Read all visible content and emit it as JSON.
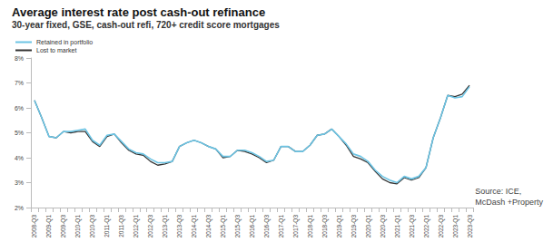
{
  "chart_data": {
    "type": "line",
    "title": "Average interest rate post cash-out refinance",
    "subtitle": "30-year fixed, GSE, cash-out refi, 720+ credit score mortgages",
    "annotations": [
      "Source: ICE,",
      "McDash +Property"
    ],
    "categories": [
      "2008-Q3",
      null,
      "2009-Q1",
      null,
      "2009-Q3",
      null,
      "2010-Q1",
      null,
      "2010-Q3",
      null,
      "2011-Q1",
      null,
      "2011-Q3",
      null,
      "2012-Q1",
      null,
      "2012-Q3",
      null,
      "2013-Q1",
      null,
      "2013-Q3",
      null,
      "2014-Q1",
      null,
      "2014-Q3",
      null,
      "2015-Q1",
      null,
      "2015-Q3",
      null,
      "2016-Q1",
      null,
      "2016-Q3",
      null,
      "2017-Q1",
      null,
      "2017-Q3",
      null,
      "2018-Q1",
      null,
      "2018-Q3",
      null,
      "2019-Q1",
      null,
      "2019-Q3",
      null,
      "2020-Q1",
      null,
      "2020-Q3",
      null,
      "2021-Q1",
      null,
      "2021-Q3",
      null,
      "2022-Q1",
      null,
      "2022-Q3",
      null,
      "2023-Q1",
      null,
      "2023-Q3"
    ],
    "series": [
      {
        "name": "Retained in portfolio",
        "color": "#6cc4e4",
        "values": [
          6.3,
          5.6,
          4.85,
          4.8,
          5.05,
          5.05,
          5.1,
          5.15,
          4.7,
          4.5,
          4.9,
          4.95,
          4.65,
          4.35,
          4.2,
          4.15,
          3.95,
          3.8,
          3.8,
          3.85,
          4.45,
          4.6,
          4.7,
          4.6,
          4.45,
          4.35,
          4.05,
          4.05,
          4.3,
          4.3,
          4.2,
          4.05,
          3.85,
          3.9,
          4.45,
          4.45,
          4.25,
          4.25,
          4.5,
          4.9,
          4.95,
          5.15,
          4.85,
          4.55,
          4.15,
          4.05,
          3.85,
          3.5,
          3.25,
          3.1,
          3.0,
          3.25,
          3.15,
          3.25,
          3.6,
          4.8,
          5.6,
          6.5,
          6.4,
          6.45,
          6.85
        ]
      },
      {
        "name": "Lost to market",
        "color": "#333333",
        "values": [
          6.3,
          5.6,
          4.85,
          4.8,
          5.05,
          5.0,
          5.05,
          5.05,
          4.65,
          4.45,
          4.85,
          4.95,
          4.6,
          4.3,
          4.15,
          4.1,
          3.85,
          3.7,
          3.75,
          3.85,
          4.45,
          4.6,
          4.7,
          4.6,
          4.45,
          4.35,
          4.0,
          4.05,
          4.3,
          4.25,
          4.15,
          4.0,
          3.8,
          3.9,
          4.45,
          4.45,
          4.25,
          4.25,
          4.5,
          4.9,
          4.95,
          5.15,
          4.85,
          4.5,
          4.05,
          3.95,
          3.8,
          3.45,
          3.15,
          3.0,
          2.95,
          3.2,
          3.1,
          3.2,
          3.6,
          4.8,
          5.6,
          6.5,
          6.45,
          6.55,
          6.9
        ]
      }
    ],
    "ylim": [
      2,
      8
    ],
    "yticks": [
      {
        "value": 2,
        "label": "2%"
      },
      {
        "value": 3,
        "label": "3%"
      },
      {
        "value": 4,
        "label": "4%"
      },
      {
        "value": 5,
        "label": "5%"
      },
      {
        "value": 6,
        "label": "6%"
      },
      {
        "value": 7,
        "label": "7%"
      },
      {
        "value": 8,
        "label": "8%"
      }
    ],
    "grid": false,
    "legend": "top-left"
  }
}
